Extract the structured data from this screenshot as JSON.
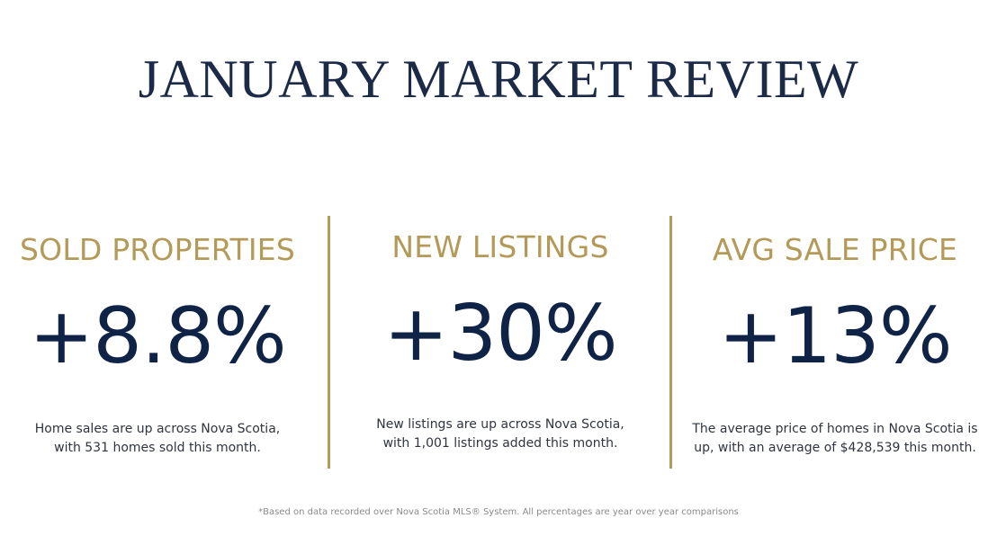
{
  "title": "JANUARY MARKET REVIEW",
  "accent_color": "#b49a58",
  "metric_color": "#0f2347",
  "stats": [
    {
      "heading": "SOLD PROPERTIES",
      "value": "+8.8%",
      "description_line1": "Home sales are up across Nova Scotia,",
      "description_line2": "with 531 homes sold this month."
    },
    {
      "heading": "NEW LISTINGS",
      "value": "+30%",
      "description_line1": "New listings are up across Nova Scotia,",
      "description_line2": "with 1,001 listings added this month."
    },
    {
      "heading": "AVG SALE PRICE",
      "value": "+13%",
      "description_line1": "The average price of homes in Nova Scotia is",
      "description_line2": "up, with an average of $428,539 this month."
    }
  ],
  "footnote": "*Based on data recorded over Nova Scotia MLS® System. All percentages are year over year comparisons"
}
